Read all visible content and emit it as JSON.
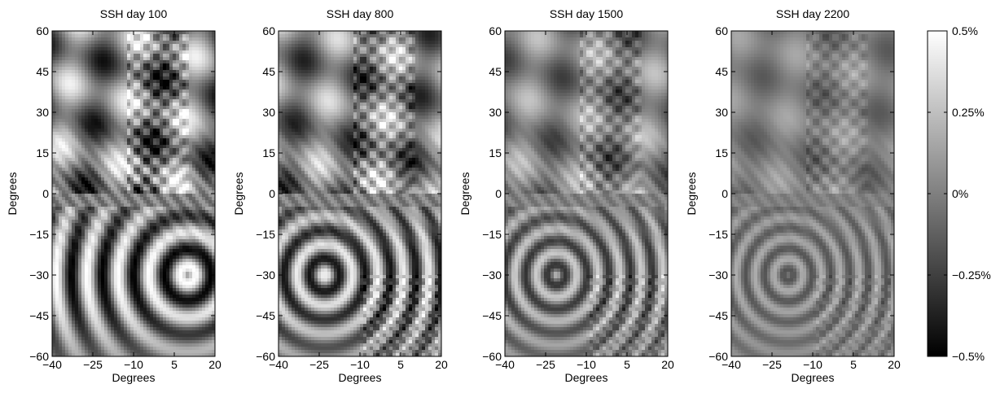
{
  "chart_data": [
    {
      "type": "heatmap",
      "title": "SSH day 100",
      "xlabel": "Degrees",
      "ylabel": "Degrees",
      "xlim": [
        -40,
        20
      ],
      "ylim": [
        -60,
        60
      ],
      "x_ticks": [
        "−40",
        "−25",
        "−10",
        "5",
        "20"
      ],
      "x_tick_values": [
        -40,
        -25,
        -10,
        5,
        20
      ],
      "y_ticks": [
        "60",
        "45",
        "30",
        "15",
        "0",
        "−15",
        "−30",
        "−45",
        "−60"
      ],
      "y_tick_values": [
        60,
        45,
        30,
        15,
        0,
        -15,
        -30,
        -45,
        -60
      ],
      "colormap": "gray",
      "clim": [
        -0.5,
        0.5
      ]
    },
    {
      "type": "heatmap",
      "title": "SSH day 800",
      "xlabel": "Degrees",
      "ylabel": "Degrees",
      "xlim": [
        -40,
        20
      ],
      "ylim": [
        -60,
        60
      ],
      "x_ticks": [
        "−40",
        "−25",
        "−10",
        "5",
        "20"
      ],
      "x_tick_values": [
        -40,
        -25,
        -10,
        5,
        20
      ],
      "y_ticks": [
        "60",
        "45",
        "30",
        "15",
        "0",
        "−15",
        "−30",
        "−45",
        "−60"
      ],
      "y_tick_values": [
        60,
        45,
        30,
        15,
        0,
        -15,
        -30,
        -45,
        -60
      ],
      "colormap": "gray",
      "clim": [
        -0.5,
        0.5
      ]
    },
    {
      "type": "heatmap",
      "title": "SSH day 1500",
      "xlabel": "Degrees",
      "ylabel": "Degrees",
      "xlim": [
        -40,
        20
      ],
      "ylim": [
        -60,
        60
      ],
      "x_ticks": [
        "−40",
        "−25",
        "−10",
        "5",
        "20"
      ],
      "x_tick_values": [
        -40,
        -25,
        -10,
        5,
        20
      ],
      "y_ticks": [
        "60",
        "45",
        "30",
        "15",
        "0",
        "−15",
        "−30",
        "−45",
        "−60"
      ],
      "y_tick_values": [
        60,
        45,
        30,
        15,
        0,
        -15,
        -30,
        -45,
        -60
      ],
      "colormap": "gray",
      "clim": [
        -0.5,
        0.5
      ]
    },
    {
      "type": "heatmap",
      "title": "SSH day 2200",
      "xlabel": "Degrees",
      "ylabel": "Degrees",
      "xlim": [
        -40,
        20
      ],
      "ylim": [
        -60,
        60
      ],
      "x_ticks": [
        "−40",
        "−25",
        "−10",
        "5",
        "20"
      ],
      "x_tick_values": [
        -40,
        -25,
        -10,
        5,
        20
      ],
      "y_ticks": [
        "60",
        "45",
        "30",
        "15",
        "0",
        "−15",
        "−30",
        "−45",
        "−60"
      ],
      "y_tick_values": [
        60,
        45,
        30,
        15,
        0,
        -15,
        -30,
        -45,
        -60
      ],
      "colormap": "gray",
      "clim": [
        -0.5,
        0.5
      ]
    }
  ],
  "colorbar": {
    "colormap": "gray",
    "range": [
      -0.5,
      0.5
    ],
    "tick_values": [
      0.5,
      0.25,
      0,
      -0.25,
      -0.5
    ],
    "tick_labels": [
      "0.5%",
      "0.25%",
      "0%",
      "−0.25%",
      "−0.5%"
    ]
  }
}
